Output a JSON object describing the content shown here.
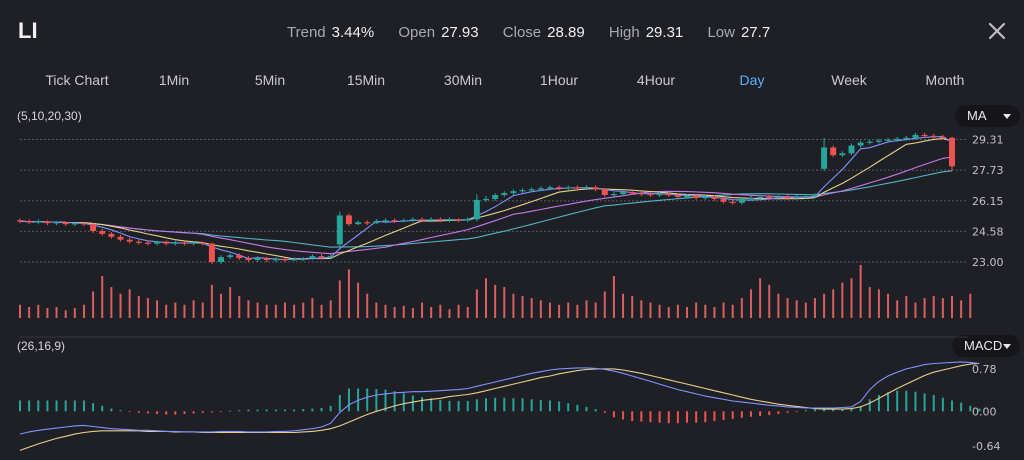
{
  "ticker": "LI",
  "stats": [
    {
      "label": "Trend",
      "value": "3.44%"
    },
    {
      "label": "Open",
      "value": "27.93"
    },
    {
      "label": "Close",
      "value": "28.89"
    },
    {
      "label": "High",
      "value": "29.31"
    },
    {
      "label": "Low",
      "value": "27.7"
    }
  ],
  "tabs": [
    {
      "label": "Tick Chart",
      "active": false
    },
    {
      "label": "1Min",
      "active": false
    },
    {
      "label": "5Min",
      "active": false
    },
    {
      "label": "15Min",
      "active": false
    },
    {
      "label": "30Min",
      "active": false
    },
    {
      "label": "1Hour",
      "active": false
    },
    {
      "label": "4Hour",
      "active": false
    },
    {
      "label": "Day",
      "active": true
    },
    {
      "label": "Week",
      "active": false
    },
    {
      "label": "Month",
      "active": false
    }
  ],
  "ma_params": "(5,10,20,30)",
  "ma_button": "MA",
  "macd_params": "(26,16,9)",
  "macd_button": "MACD",
  "colors": {
    "up": "#26a69a",
    "down": "#ef5350",
    "active": "#55b3ff",
    "ma5": "#7f93ff",
    "ma10": "#e9d08a",
    "ma20": "#c678e6",
    "ma30": "#4fb5c7"
  },
  "chart_data": [
    {
      "type": "candlestick",
      "title": "",
      "yticks": [
        "29.31",
        "27.73",
        "26.15",
        "24.58",
        "23.00"
      ],
      "ylim": [
        23.0,
        29.8
      ],
      "candles": [
        {
          "o": 25.15,
          "c": 25.1,
          "h": 25.25,
          "l": 25.0
        },
        {
          "o": 25.1,
          "c": 25.05,
          "h": 25.2,
          "l": 24.95
        },
        {
          "o": 25.05,
          "c": 25.1,
          "h": 25.2,
          "l": 24.95
        },
        {
          "o": 25.1,
          "c": 25.0,
          "h": 25.15,
          "l": 24.9
        },
        {
          "o": 25.0,
          "c": 25.05,
          "h": 25.1,
          "l": 24.9
        },
        {
          "o": 25.05,
          "c": 24.95,
          "h": 25.1,
          "l": 24.85
        },
        {
          "o": 24.95,
          "c": 25.0,
          "h": 25.05,
          "l": 24.85
        },
        {
          "o": 25.0,
          "c": 24.95,
          "h": 25.05,
          "l": 24.85
        },
        {
          "o": 24.95,
          "c": 24.6,
          "h": 25.0,
          "l": 24.5
        },
        {
          "o": 24.6,
          "c": 24.45,
          "h": 24.7,
          "l": 24.35
        },
        {
          "o": 24.45,
          "c": 24.3,
          "h": 24.55,
          "l": 24.2
        },
        {
          "o": 24.3,
          "c": 24.15,
          "h": 24.4,
          "l": 24.05
        },
        {
          "o": 24.15,
          "c": 24.05,
          "h": 24.25,
          "l": 23.95
        },
        {
          "o": 24.05,
          "c": 24.0,
          "h": 24.15,
          "l": 23.9
        },
        {
          "o": 24.0,
          "c": 23.95,
          "h": 24.1,
          "l": 23.85
        },
        {
          "o": 23.95,
          "c": 24.05,
          "h": 24.1,
          "l": 23.85
        },
        {
          "o": 24.05,
          "c": 23.95,
          "h": 24.1,
          "l": 23.85
        },
        {
          "o": 23.95,
          "c": 24.0,
          "h": 24.1,
          "l": 23.85
        },
        {
          "o": 24.0,
          "c": 23.95,
          "h": 24.05,
          "l": 23.85
        },
        {
          "o": 23.95,
          "c": 24.0,
          "h": 24.05,
          "l": 23.85
        },
        {
          "o": 24.0,
          "c": 23.95,
          "h": 24.05,
          "l": 23.85
        },
        {
          "o": 23.95,
          "c": 23.0,
          "h": 24.0,
          "l": 22.9
        },
        {
          "o": 23.0,
          "c": 23.25,
          "h": 23.35,
          "l": 22.9
        },
        {
          "o": 23.25,
          "c": 23.35,
          "h": 23.45,
          "l": 23.15
        },
        {
          "o": 23.35,
          "c": 23.2,
          "h": 23.45,
          "l": 23.1
        },
        {
          "o": 23.2,
          "c": 23.1,
          "h": 23.3,
          "l": 23.0
        },
        {
          "o": 23.1,
          "c": 23.2,
          "h": 23.3,
          "l": 23.0
        },
        {
          "o": 23.2,
          "c": 23.1,
          "h": 23.25,
          "l": 23.0
        },
        {
          "o": 23.1,
          "c": 23.15,
          "h": 23.25,
          "l": 23.0
        },
        {
          "o": 23.15,
          "c": 23.1,
          "h": 23.2,
          "l": 23.0
        },
        {
          "o": 23.1,
          "c": 23.15,
          "h": 23.25,
          "l": 23.05
        },
        {
          "o": 23.15,
          "c": 23.2,
          "h": 23.25,
          "l": 23.05
        },
        {
          "o": 23.2,
          "c": 23.3,
          "h": 23.4,
          "l": 23.1
        },
        {
          "o": 23.3,
          "c": 23.25,
          "h": 23.4,
          "l": 23.15
        },
        {
          "o": 23.25,
          "c": 23.3,
          "h": 23.4,
          "l": 23.15
        },
        {
          "o": 23.9,
          "c": 25.4,
          "h": 25.6,
          "l": 23.8
        },
        {
          "o": 25.4,
          "c": 24.95,
          "h": 25.5,
          "l": 24.85
        },
        {
          "o": 24.95,
          "c": 25.05,
          "h": 25.15,
          "l": 24.9
        },
        {
          "o": 25.05,
          "c": 25.0,
          "h": 25.15,
          "l": 24.9
        },
        {
          "o": 25.0,
          "c": 25.1,
          "h": 25.2,
          "l": 24.95
        },
        {
          "o": 25.1,
          "c": 25.15,
          "h": 25.25,
          "l": 25.0
        },
        {
          "o": 25.15,
          "c": 25.1,
          "h": 25.25,
          "l": 25.0
        },
        {
          "o": 25.1,
          "c": 25.15,
          "h": 25.25,
          "l": 25.05
        },
        {
          "o": 25.15,
          "c": 25.2,
          "h": 25.3,
          "l": 25.05
        },
        {
          "o": 25.2,
          "c": 25.15,
          "h": 25.3,
          "l": 25.05
        },
        {
          "o": 25.15,
          "c": 25.2,
          "h": 25.3,
          "l": 25.05
        },
        {
          "o": 25.2,
          "c": 25.15,
          "h": 25.3,
          "l": 25.05
        },
        {
          "o": 25.15,
          "c": 25.2,
          "h": 25.3,
          "l": 25.05
        },
        {
          "o": 25.2,
          "c": 25.15,
          "h": 25.25,
          "l": 25.05
        },
        {
          "o": 25.15,
          "c": 25.2,
          "h": 25.3,
          "l": 25.05
        },
        {
          "o": 25.2,
          "c": 26.2,
          "h": 26.5,
          "l": 25.1
        },
        {
          "o": 26.2,
          "c": 26.25,
          "h": 26.4,
          "l": 26.1
        },
        {
          "o": 26.25,
          "c": 26.45,
          "h": 26.55,
          "l": 26.15
        },
        {
          "o": 26.45,
          "c": 26.55,
          "h": 26.65,
          "l": 26.35
        },
        {
          "o": 26.55,
          "c": 26.65,
          "h": 26.75,
          "l": 26.45
        },
        {
          "o": 26.65,
          "c": 26.7,
          "h": 26.8,
          "l": 26.55
        },
        {
          "o": 26.7,
          "c": 26.75,
          "h": 26.85,
          "l": 26.6
        },
        {
          "o": 26.75,
          "c": 26.8,
          "h": 26.9,
          "l": 26.65
        },
        {
          "o": 26.8,
          "c": 26.85,
          "h": 26.95,
          "l": 26.7
        },
        {
          "o": 26.85,
          "c": 26.8,
          "h": 26.95,
          "l": 26.7
        },
        {
          "o": 26.8,
          "c": 26.85,
          "h": 26.95,
          "l": 26.7
        },
        {
          "o": 26.85,
          "c": 26.8,
          "h": 26.95,
          "l": 26.7
        },
        {
          "o": 26.8,
          "c": 26.85,
          "h": 26.95,
          "l": 26.7
        },
        {
          "o": 26.85,
          "c": 26.75,
          "h": 26.95,
          "l": 26.65
        },
        {
          "o": 26.75,
          "c": 26.45,
          "h": 26.8,
          "l": 26.35
        },
        {
          "o": 26.45,
          "c": 26.5,
          "h": 26.6,
          "l": 26.35
        },
        {
          "o": 26.5,
          "c": 26.6,
          "h": 26.7,
          "l": 26.4
        },
        {
          "o": 26.6,
          "c": 26.55,
          "h": 26.7,
          "l": 26.45
        },
        {
          "o": 26.55,
          "c": 26.5,
          "h": 26.65,
          "l": 26.4
        },
        {
          "o": 26.5,
          "c": 26.45,
          "h": 26.6,
          "l": 26.35
        },
        {
          "o": 26.45,
          "c": 26.5,
          "h": 26.6,
          "l": 26.35
        },
        {
          "o": 26.5,
          "c": 26.45,
          "h": 26.6,
          "l": 26.35
        },
        {
          "o": 26.45,
          "c": 26.35,
          "h": 26.5,
          "l": 26.25
        },
        {
          "o": 26.35,
          "c": 26.4,
          "h": 26.5,
          "l": 26.25
        },
        {
          "o": 26.4,
          "c": 26.3,
          "h": 26.5,
          "l": 26.2
        },
        {
          "o": 26.3,
          "c": 26.35,
          "h": 26.45,
          "l": 26.2
        },
        {
          "o": 26.35,
          "c": 26.25,
          "h": 26.45,
          "l": 26.15
        },
        {
          "o": 26.25,
          "c": 26.1,
          "h": 26.35,
          "l": 26.0
        },
        {
          "o": 26.1,
          "c": 26.05,
          "h": 26.2,
          "l": 25.95
        },
        {
          "o": 26.05,
          "c": 26.25,
          "h": 26.35,
          "l": 25.95
        },
        {
          "o": 26.25,
          "c": 26.3,
          "h": 26.4,
          "l": 26.15
        },
        {
          "o": 26.3,
          "c": 26.35,
          "h": 26.45,
          "l": 26.2
        },
        {
          "o": 26.35,
          "c": 26.3,
          "h": 26.45,
          "l": 26.2
        },
        {
          "o": 26.3,
          "c": 26.35,
          "h": 26.45,
          "l": 26.2
        },
        {
          "o": 26.35,
          "c": 26.3,
          "h": 26.45,
          "l": 26.2
        },
        {
          "o": 26.3,
          "c": 26.35,
          "h": 26.45,
          "l": 26.2
        },
        {
          "o": 26.35,
          "c": 26.4,
          "h": 26.5,
          "l": 26.25
        },
        {
          "o": 26.4,
          "c": 26.45,
          "h": 26.55,
          "l": 26.3
        },
        {
          "o": 27.8,
          "c": 28.9,
          "h": 29.4,
          "l": 27.7
        },
        {
          "o": 28.9,
          "c": 28.5,
          "h": 29.0,
          "l": 28.4
        },
        {
          "o": 28.5,
          "c": 28.6,
          "h": 28.7,
          "l": 28.4
        },
        {
          "o": 28.6,
          "c": 29.0,
          "h": 29.1,
          "l": 28.5
        },
        {
          "o": 29.0,
          "c": 29.15,
          "h": 29.25,
          "l": 28.9
        },
        {
          "o": 29.15,
          "c": 29.2,
          "h": 29.3,
          "l": 29.05
        },
        {
          "o": 29.2,
          "c": 29.25,
          "h": 29.35,
          "l": 29.1
        },
        {
          "o": 29.25,
          "c": 29.3,
          "h": 29.4,
          "l": 29.15
        },
        {
          "o": 29.3,
          "c": 29.35,
          "h": 29.45,
          "l": 29.2
        },
        {
          "o": 29.35,
          "c": 29.4,
          "h": 29.5,
          "l": 29.25
        },
        {
          "o": 29.4,
          "c": 29.55,
          "h": 29.65,
          "l": 29.3
        },
        {
          "o": 29.55,
          "c": 29.5,
          "h": 29.65,
          "l": 29.4
        },
        {
          "o": 29.5,
          "c": 29.45,
          "h": 29.6,
          "l": 29.35
        },
        {
          "o": 29.45,
          "c": 29.4,
          "h": 29.55,
          "l": 29.3
        },
        {
          "o": 29.4,
          "c": 27.93,
          "h": 29.45,
          "l": 27.7
        }
      ],
      "volume": [
        12,
        10,
        12,
        9,
        10,
        7,
        9,
        12,
        24,
        38,
        28,
        22,
        26,
        20,
        18,
        16,
        12,
        14,
        12,
        16,
        14,
        30,
        22,
        28,
        20,
        16,
        14,
        12,
        12,
        14,
        12,
        14,
        18,
        12,
        16,
        34,
        44,
        32,
        22,
        14,
        12,
        10,
        11,
        9,
        14,
        10,
        12,
        8,
        12,
        10,
        26,
        36,
        30,
        28,
        22,
        20,
        18,
        16,
        14,
        12,
        14,
        12,
        16,
        14,
        24,
        38,
        22,
        20,
        16,
        14,
        12,
        10,
        12,
        10,
        14,
        12,
        10,
        14,
        12,
        18,
        26,
        36,
        30,
        22,
        18,
        16,
        14,
        18,
        22,
        26,
        32,
        36,
        48,
        28,
        26,
        22,
        16,
        20,
        14,
        18,
        20,
        18,
        20,
        16,
        22
      ]
    },
    {
      "type": "bar+line",
      "title": "",
      "yticks": [
        "0.78",
        "0.00",
        "-0.64"
      ],
      "ylim": [
        -0.75,
        1.0
      ],
      "histogram": [
        0.2,
        0.2,
        0.2,
        0.2,
        0.2,
        0.2,
        0.2,
        0.2,
        0.15,
        0.1,
        0.05,
        0.02,
        -0.01,
        -0.03,
        -0.04,
        -0.05,
        -0.06,
        -0.06,
        -0.05,
        -0.04,
        -0.03,
        -0.02,
        -0.01,
        0.01,
        0.02,
        0.03,
        0.03,
        0.03,
        0.03,
        0.03,
        0.03,
        0.04,
        0.05,
        0.06,
        0.1,
        0.3,
        0.42,
        0.42,
        0.42,
        0.41,
        0.4,
        0.37,
        0.33,
        0.29,
        0.26,
        0.24,
        0.21,
        0.19,
        0.19,
        0.19,
        0.22,
        0.24,
        0.25,
        0.25,
        0.24,
        0.24,
        0.22,
        0.21,
        0.2,
        0.18,
        0.15,
        0.12,
        0.08,
        0.04,
        -0.03,
        -0.11,
        -0.15,
        -0.18,
        -0.19,
        -0.2,
        -0.21,
        -0.22,
        -0.22,
        -0.21,
        -0.21,
        -0.2,
        -0.18,
        -0.16,
        -0.14,
        -0.12,
        -0.1,
        -0.09,
        -0.07,
        -0.05,
        -0.03,
        -0.01,
        0.02,
        0.04,
        0.05,
        0.05,
        0.04,
        0.04,
        0.1,
        0.22,
        0.3,
        0.35,
        0.38,
        0.38,
        0.36,
        0.33,
        0.3,
        0.25,
        0.2,
        0.16,
        0.1,
        0.05
      ],
      "macd_line": [
        -0.42,
        -0.38,
        -0.35,
        -0.33,
        -0.31,
        -0.29,
        -0.27,
        -0.26,
        -0.28,
        -0.3,
        -0.32,
        -0.33,
        -0.34,
        -0.35,
        -0.35,
        -0.36,
        -0.37,
        -0.37,
        -0.38,
        -0.38,
        -0.38,
        -0.38,
        -0.37,
        -0.37,
        -0.37,
        -0.38,
        -0.38,
        -0.38,
        -0.37,
        -0.37,
        -0.36,
        -0.34,
        -0.32,
        -0.29,
        -0.22,
        -0.02,
        0.12,
        0.2,
        0.26,
        0.3,
        0.32,
        0.34,
        0.35,
        0.36,
        0.36,
        0.37,
        0.38,
        0.39,
        0.4,
        0.42,
        0.46,
        0.5,
        0.54,
        0.58,
        0.62,
        0.66,
        0.7,
        0.73,
        0.76,
        0.78,
        0.79,
        0.8,
        0.8,
        0.79,
        0.77,
        0.74,
        0.7,
        0.65,
        0.6,
        0.55,
        0.5,
        0.45,
        0.4,
        0.36,
        0.32,
        0.28,
        0.25,
        0.22,
        0.19,
        0.17,
        0.15,
        0.13,
        0.11,
        0.1,
        0.08,
        0.07,
        0.06,
        0.06,
        0.06,
        0.06,
        0.07,
        0.08,
        0.18,
        0.4,
        0.55,
        0.65,
        0.72,
        0.78,
        0.82,
        0.86,
        0.88,
        0.89,
        0.9,
        0.91,
        0.9,
        0.88
      ],
      "signal_line": [
        -0.72,
        -0.66,
        -0.6,
        -0.55,
        -0.5,
        -0.46,
        -0.42,
        -0.39,
        -0.37,
        -0.36,
        -0.36,
        -0.36,
        -0.36,
        -0.36,
        -0.37,
        -0.37,
        -0.37,
        -0.38,
        -0.38,
        -0.38,
        -0.39,
        -0.39,
        -0.39,
        -0.39,
        -0.39,
        -0.39,
        -0.39,
        -0.39,
        -0.39,
        -0.39,
        -0.39,
        -0.38,
        -0.37,
        -0.35,
        -0.32,
        -0.27,
        -0.2,
        -0.13,
        -0.06,
        0.0,
        0.05,
        0.1,
        0.14,
        0.17,
        0.2,
        0.22,
        0.24,
        0.27,
        0.29,
        0.31,
        0.34,
        0.38,
        0.42,
        0.46,
        0.5,
        0.54,
        0.58,
        0.62,
        0.65,
        0.69,
        0.72,
        0.75,
        0.77,
        0.78,
        0.78,
        0.78,
        0.76,
        0.73,
        0.7,
        0.66,
        0.62,
        0.58,
        0.54,
        0.5,
        0.46,
        0.42,
        0.38,
        0.34,
        0.3,
        0.26,
        0.22,
        0.19,
        0.16,
        0.13,
        0.11,
        0.09,
        0.07,
        0.05,
        0.04,
        0.04,
        0.04,
        0.05,
        0.08,
        0.15,
        0.24,
        0.33,
        0.42,
        0.5,
        0.58,
        0.66,
        0.72,
        0.76,
        0.8,
        0.84,
        0.87,
        0.88
      ]
    }
  ]
}
